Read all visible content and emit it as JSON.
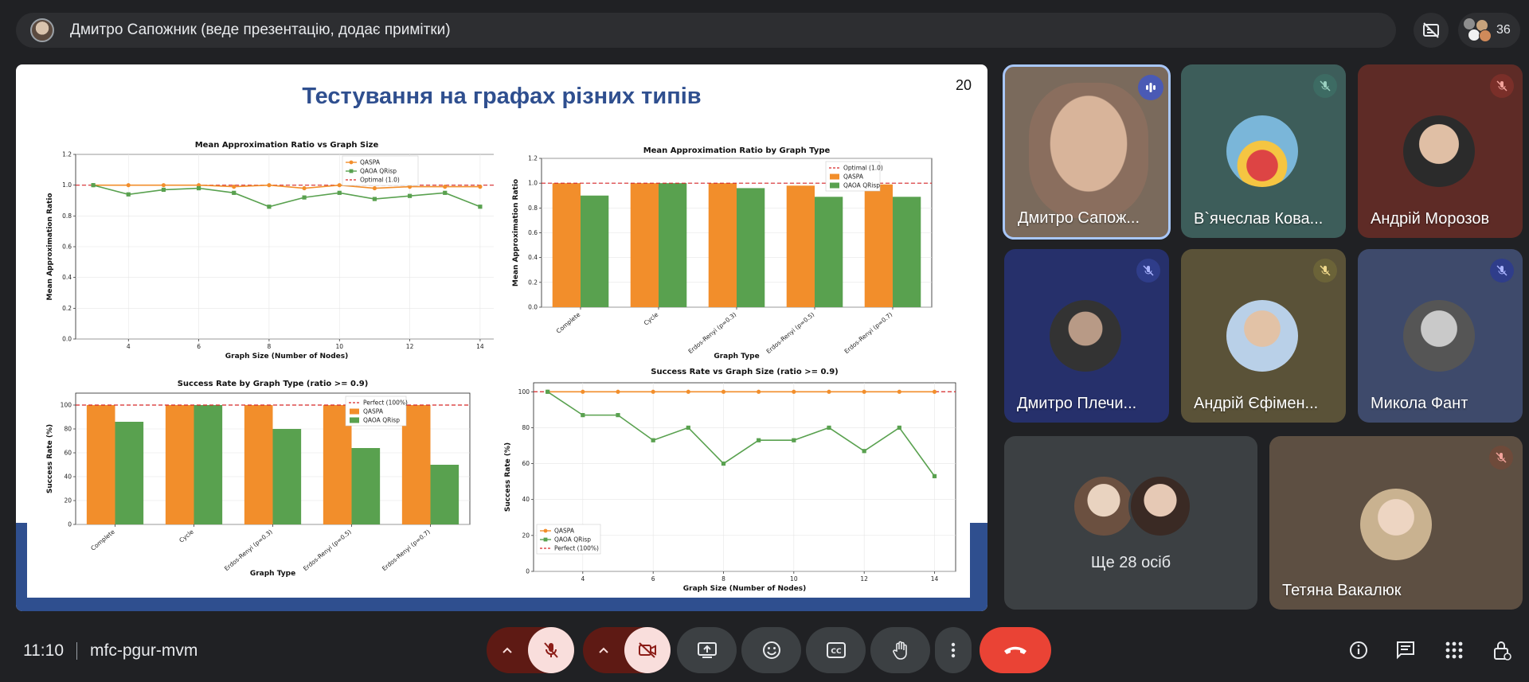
{
  "top_bar": {
    "presenter_text": "Дмитро Сапожник (веде презентацію, додає примітки)",
    "participant_count": "36"
  },
  "slide": {
    "title": "Тестування на графах різних типів",
    "page_number": "20"
  },
  "chart_data": [
    {
      "type": "line",
      "title": "Mean Approximation Ratio vs Graph Size",
      "xlabel": "Graph Size (Number of Nodes)",
      "ylabel": "Mean Approximation Ratio",
      "x": [
        3,
        4,
        5,
        6,
        7,
        8,
        9,
        10,
        11,
        12,
        13,
        14
      ],
      "xticks": [
        "4",
        "6",
        "8",
        "10",
        "12",
        "14"
      ],
      "yticks": [
        "0.0",
        "0.2",
        "0.4",
        "0.6",
        "0.8",
        "1.0",
        "1.2"
      ],
      "ylim": [
        0,
        1.2
      ],
      "series": [
        {
          "name": "QASPA",
          "values": [
            1.0,
            1.0,
            1.0,
            1.0,
            0.99,
            1.0,
            0.98,
            1.0,
            0.98,
            0.99,
            0.99,
            0.99
          ],
          "color": "#f28e2b"
        },
        {
          "name": "QAOA QRisp",
          "values": [
            1.0,
            0.94,
            0.97,
            0.98,
            0.95,
            0.86,
            0.92,
            0.95,
            0.91,
            0.93,
            0.95,
            0.86
          ],
          "color": "#59a14f"
        }
      ],
      "reference": {
        "name": "Optimal (1.0)",
        "value": 1.0,
        "color": "#d62728"
      },
      "legend": "top-right",
      "grid": true
    },
    {
      "type": "bar",
      "title": "Mean Approximation Ratio by Graph Type",
      "xlabel": "Graph Type",
      "ylabel": "Mean Approximation Ratio",
      "categories": [
        "Complete",
        "Cycle",
        "Erdos-Renyi (p=0.3)",
        "Erdos-Renyi (p=0.5)",
        "Erdos-Renyi (p=0.7)"
      ],
      "yticks": [
        "0.0",
        "0.2",
        "0.4",
        "0.6",
        "0.8",
        "1.0",
        "1.2"
      ],
      "ylim": [
        0,
        1.2
      ],
      "series": [
        {
          "name": "QASPA",
          "values": [
            1.0,
            1.0,
            1.0,
            0.98,
            0.99
          ],
          "color": "#f28e2b"
        },
        {
          "name": "QAOA QRisp",
          "values": [
            0.9,
            1.0,
            0.96,
            0.89,
            0.89
          ],
          "color": "#59a14f"
        }
      ],
      "reference": {
        "name": "Optimal (1.0)",
        "value": 1.0,
        "color": "#d62728"
      },
      "legend": "top-right",
      "grid": true
    },
    {
      "type": "bar",
      "title": "Success Rate by Graph Type (ratio >= 0.9)",
      "xlabel": "Graph Type",
      "ylabel": "Success Rate (%)",
      "categories": [
        "Complete",
        "Cycle",
        "Erdos-Renyi (p=0.3)",
        "Erdos-Renyi (p=0.5)",
        "Erdos-Renyi (p=0.7)"
      ],
      "yticks": [
        "0",
        "20",
        "40",
        "60",
        "80",
        "100"
      ],
      "ylim": [
        0,
        110
      ],
      "series": [
        {
          "name": "QASPA",
          "values": [
            100,
            100,
            100,
            100,
            100
          ],
          "color": "#f28e2b"
        },
        {
          "name": "QAOA QRisp",
          "values": [
            86,
            100,
            80,
            64,
            50
          ],
          "color": "#59a14f"
        }
      ],
      "reference": {
        "name": "Perfect (100%)",
        "value": 100,
        "color": "#d62728"
      },
      "legend": "top-right",
      "grid": true
    },
    {
      "type": "line",
      "title": "Success Rate vs Graph Size (ratio >= 0.9)",
      "xlabel": "Graph Size (Number of Nodes)",
      "ylabel": "Success Rate (%)",
      "x": [
        3,
        4,
        5,
        6,
        7,
        8,
        9,
        10,
        11,
        12,
        13,
        14
      ],
      "xticks": [
        "4",
        "6",
        "8",
        "10",
        "12",
        "14"
      ],
      "yticks": [
        "0",
        "20",
        "40",
        "60",
        "80",
        "100"
      ],
      "ylim": [
        0,
        105
      ],
      "series": [
        {
          "name": "QASPA",
          "values": [
            100,
            100,
            100,
            100,
            100,
            100,
            100,
            100,
            100,
            100,
            100,
            100
          ],
          "color": "#f28e2b"
        },
        {
          "name": "QAOA QRisp",
          "values": [
            100,
            87,
            87,
            73,
            80,
            60,
            73,
            73,
            80,
            67,
            80,
            53
          ],
          "color": "#59a14f"
        }
      ],
      "reference": {
        "name": "Perfect (100%)",
        "value": 100,
        "color": "#d62728"
      },
      "legend": "bottom-left",
      "grid": true
    }
  ],
  "participants": [
    {
      "name": "Дмитро Сапож...",
      "state": "speaking"
    },
    {
      "name": "В`ячеслав Кова...",
      "state": "muted"
    },
    {
      "name": "Андрій Морозов",
      "state": "muted"
    },
    {
      "name": "Дмитро Плечи...",
      "state": "muted"
    },
    {
      "name": "Андрій Єфімен...",
      "state": "muted"
    },
    {
      "name": "Микола Фант",
      "state": "muted"
    },
    {
      "name": "Тетяна Вакалюк",
      "state": "muted"
    }
  ],
  "others_tile": {
    "label": "Ще 28 осіб"
  },
  "bottom_bar": {
    "time": "11:10",
    "meeting_code": "mfc-pgur-mvm"
  },
  "colors": {
    "background": "#202124",
    "end_call": "#ea4335",
    "muted_control": "#f9dedc",
    "accent_blue": "#2f4f8f"
  }
}
